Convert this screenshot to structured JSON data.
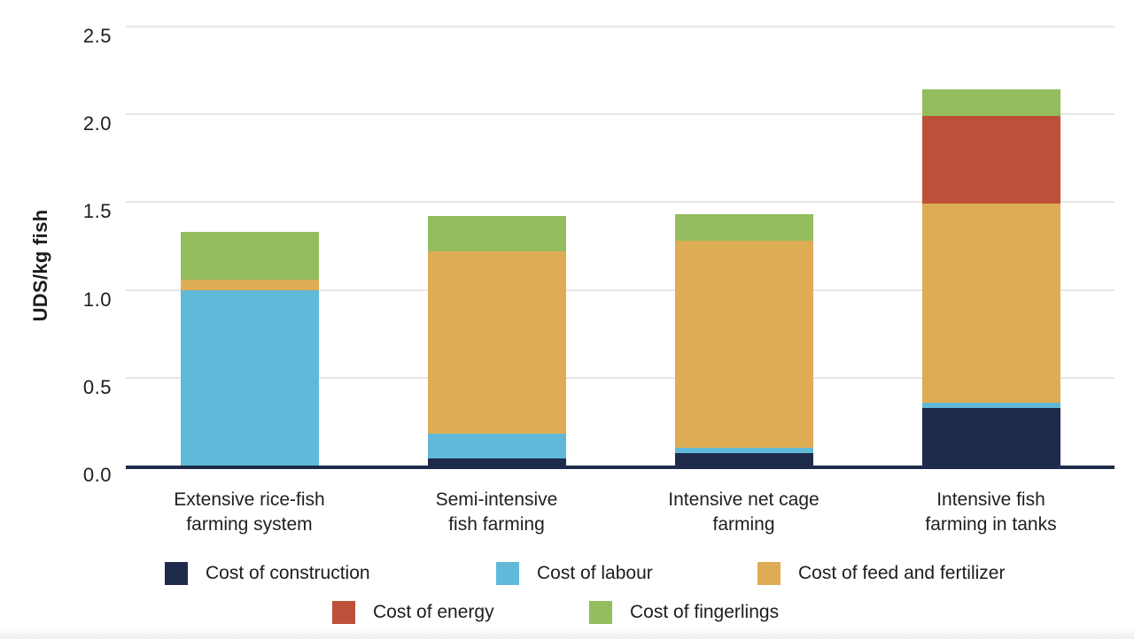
{
  "chart_data": {
    "type": "bar",
    "stacked": true,
    "title": "",
    "xlabel": "",
    "ylabel": "UDS/kg fish",
    "ylim": [
      0,
      2.5
    ],
    "yticks": [
      "0.0",
      "0.5",
      "1.0",
      "1.5",
      "2.0",
      "2.5"
    ],
    "grid": true,
    "legend_position": "bottom",
    "categories": [
      {
        "label": "Extensive rice-fish farming system",
        "lines": [
          "Extensive rice-fish",
          "farming system"
        ]
      },
      {
        "label": "Semi-intensive fish farming",
        "lines": [
          "Semi-intensive",
          "fish farming"
        ]
      },
      {
        "label": "Intensive net cage farming",
        "lines": [
          "Intensive net cage",
          "farming"
        ]
      },
      {
        "label": "Intensive fish farming in tanks",
        "lines": [
          "Intensive fish",
          "farming in tanks"
        ]
      }
    ],
    "series": [
      {
        "name": "Cost of construction",
        "color": "#1e2b4a",
        "values": [
          0,
          0.04,
          0.07,
          0.33
        ]
      },
      {
        "name": "Cost of labour",
        "color": "#60b9d8",
        "values": [
          1.0,
          0.14,
          0.03,
          0.03
        ]
      },
      {
        "name": "Cost of feed and fertilizer",
        "color": "#dfac56",
        "values": [
          0.06,
          1.04,
          1.18,
          1.13
        ]
      },
      {
        "name": "Cost of energy",
        "color": "#bd5038",
        "values": [
          0,
          0,
          0,
          0.5
        ]
      },
      {
        "name": "Cost of fingerlings",
        "color": "#93bd5f",
        "values": [
          0.27,
          0.2,
          0.15,
          0.15
        ]
      }
    ],
    "legend_rows": [
      [
        0,
        1,
        2
      ],
      [
        3,
        4
      ]
    ]
  },
  "colors": {
    "axis_line": "#1e2b4a",
    "gridline": "#e8e6e2",
    "text": "#1d1d1f",
    "background": "#ffffff"
  }
}
